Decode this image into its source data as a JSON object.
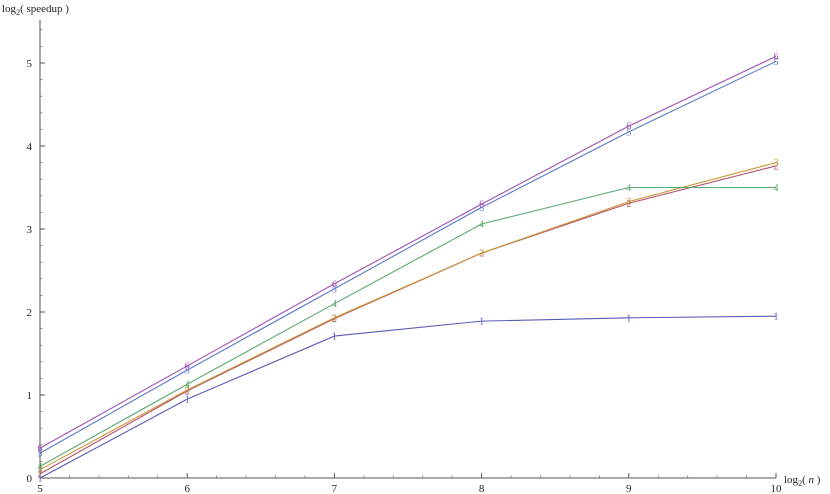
{
  "chart_data": {
    "type": "line",
    "xlabel": {
      "prefix": "log",
      "sub": "2",
      "open": "( ",
      "var": "n",
      "close": " )"
    },
    "ylabel": {
      "prefix": "log",
      "sub": "2",
      "open": "( ",
      "var": "speedup",
      "close": " )"
    },
    "x": [
      5,
      6,
      7,
      8,
      9,
      10
    ],
    "xlim": [
      5,
      10
    ],
    "ylim": [
      0,
      5.5
    ],
    "xticks": [
      "5",
      "6",
      "7",
      "8",
      "9",
      "10"
    ],
    "yticks": [
      "0",
      "1",
      "2",
      "3",
      "4",
      "5"
    ],
    "grid": false,
    "series": [
      {
        "marker": "1",
        "color": "#5a5ab4",
        "values": [
          0.0,
          0.95,
          1.71,
          1.89,
          1.93,
          1.95
        ]
      },
      {
        "marker": "2",
        "color": "#b4506e",
        "values": [
          0.05,
          1.05,
          1.92,
          2.71,
          3.31,
          3.76
        ]
      },
      {
        "marker": "3",
        "color": "#c89632",
        "values": [
          0.1,
          1.06,
          1.93,
          2.71,
          3.33,
          3.8
        ]
      },
      {
        "marker": "4",
        "color": "#5aaa6e",
        "values": [
          0.14,
          1.13,
          2.1,
          3.06,
          3.5,
          3.5
        ]
      },
      {
        "marker": "5",
        "color": "#5a78c8",
        "values": [
          0.3,
          1.3,
          2.28,
          3.26,
          4.17,
          5.02
        ]
      },
      {
        "marker": "6",
        "color": "#a050b4",
        "values": [
          0.36,
          1.35,
          2.34,
          3.3,
          4.24,
          5.08
        ]
      }
    ]
  }
}
